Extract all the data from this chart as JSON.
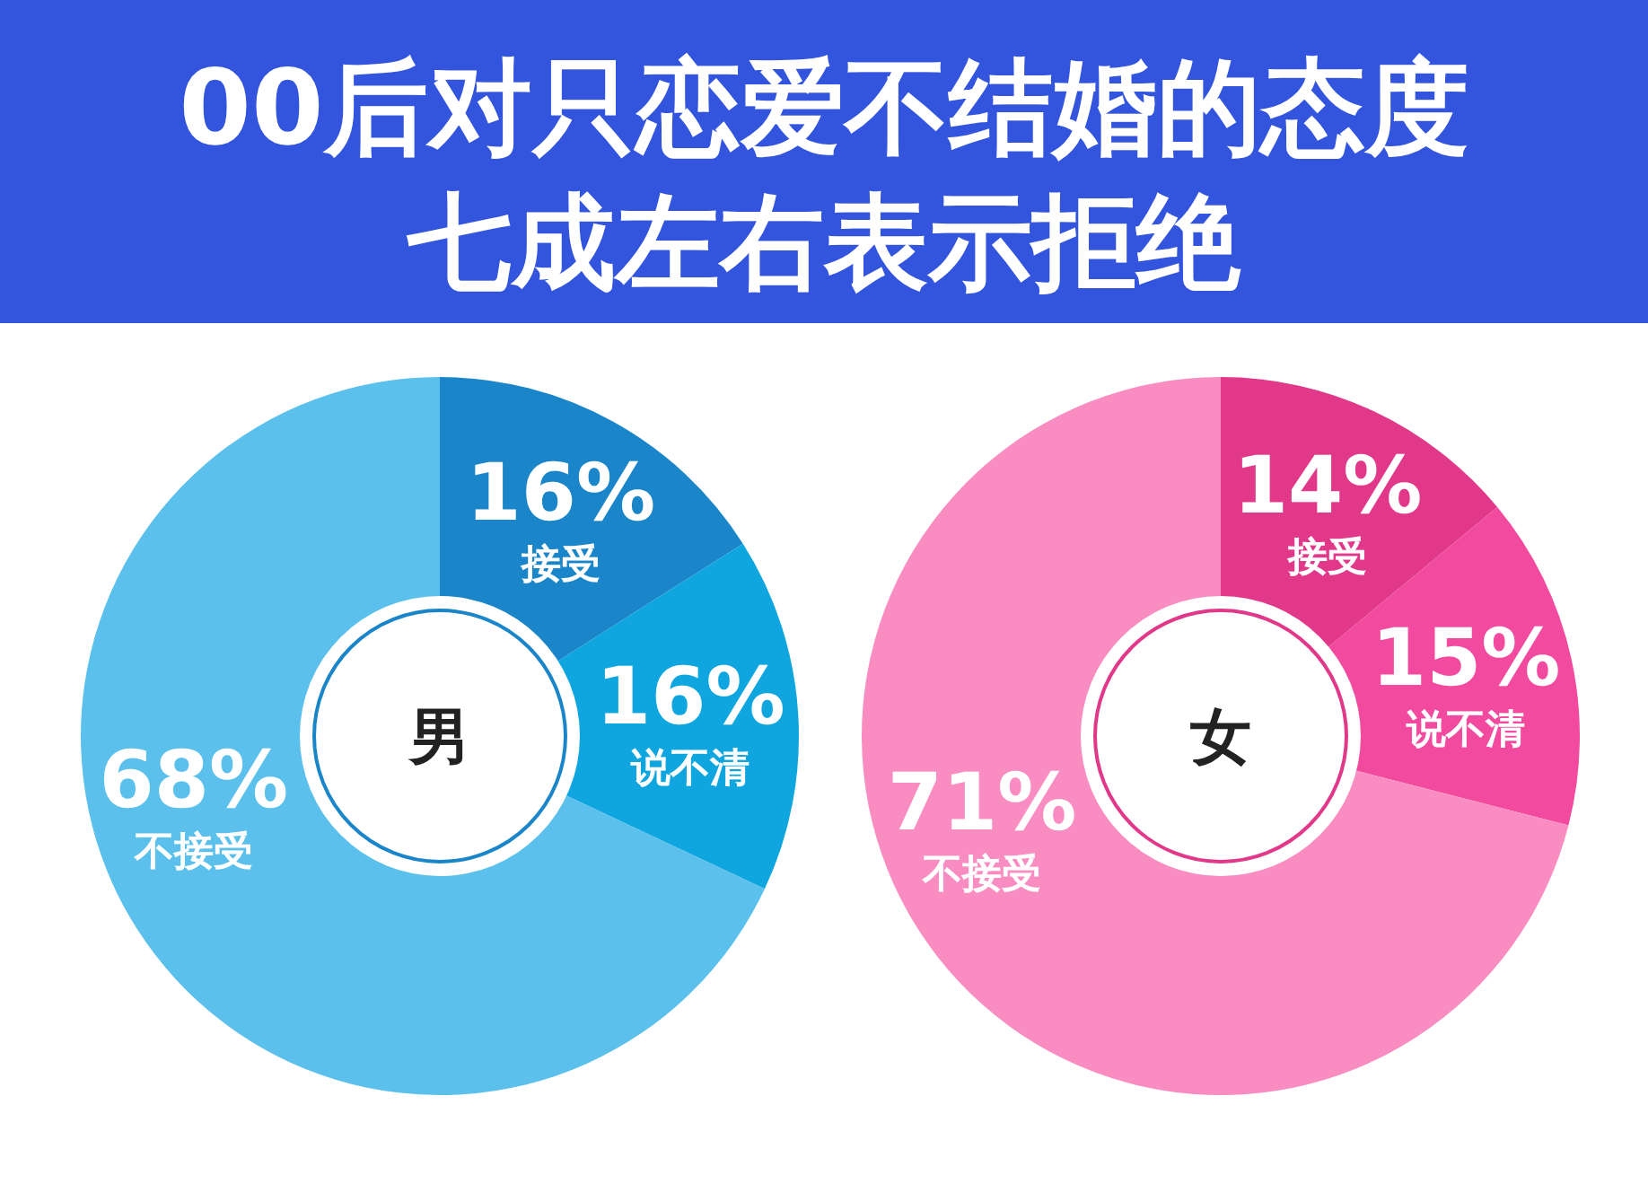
{
  "chart_data": [
    {
      "type": "other",
      "title": "00后对只恋爱不结婚的态度",
      "subtitle": "七成左右表示拒绝"
    },
    {
      "type": "donut",
      "title": "男",
      "categories": [
        "接受",
        "说不清",
        "不接受"
      ],
      "values": [
        16,
        16,
        68
      ],
      "colors": [
        "#1a85c8",
        "#0fa6e0",
        "#5bc0ec"
      ],
      "value_labels": [
        "16%",
        "16%",
        "68%"
      ]
    },
    {
      "type": "donut",
      "title": "女",
      "categories": [
        "接受",
        "说不清",
        "不接受"
      ],
      "values": [
        14,
        15,
        71
      ],
      "colors": [
        "#e2388a",
        "#f24a9e",
        "#f98cc0"
      ],
      "value_labels": [
        "14%",
        "15%",
        "71%"
      ]
    }
  ]
}
